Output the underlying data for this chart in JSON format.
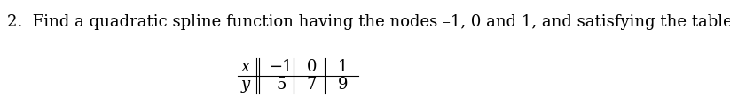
{
  "text_line": "2.  Find a quadratic spline function having the nodes –1, 0 and 1, and satisfying the table",
  "table_x_label": "x",
  "table_y_label": "y",
  "x_values": [
    "−1",
    "0",
    "1"
  ],
  "y_values": [
    "5",
    "7",
    "9"
  ],
  "bg_color": "#ffffff",
  "text_color": "#000000",
  "font_size": 13,
  "table_font_size": 13
}
